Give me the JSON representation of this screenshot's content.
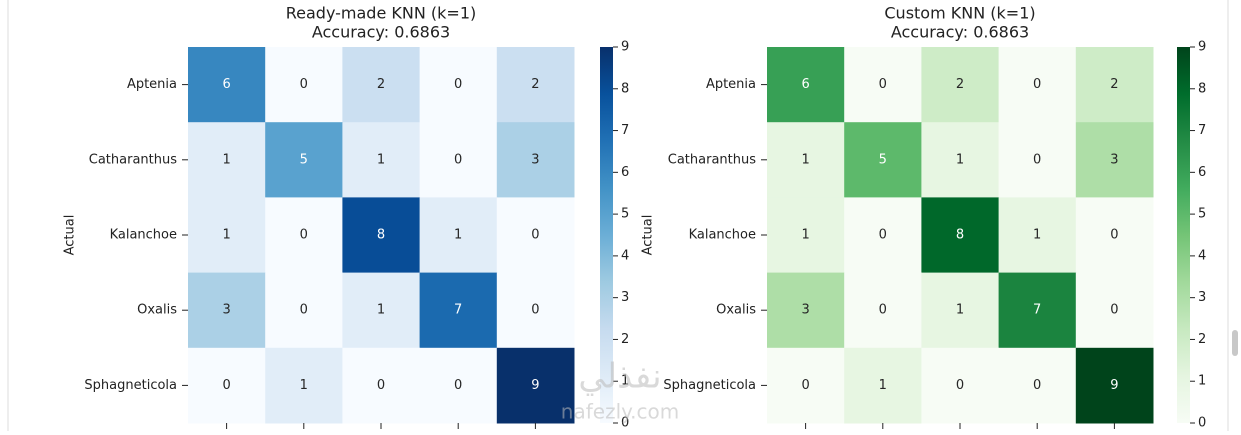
{
  "chart_data": [
    {
      "type": "heatmap",
      "title": "Ready-made KNN (k=1)",
      "subtitle": "Accuracy: 0.6863",
      "ylabel": "Actual",
      "rows": [
        "Aptenia",
        "Catharanthus",
        "Kalanchoe",
        "Oxalis",
        "Sphagneticola"
      ],
      "columns": [
        null,
        null,
        null,
        null,
        null
      ],
      "values": [
        [
          6,
          0,
          2,
          0,
          2
        ],
        [
          1,
          5,
          1,
          0,
          3
        ],
        [
          1,
          0,
          8,
          1,
          0
        ],
        [
          3,
          0,
          1,
          7,
          0
        ],
        [
          0,
          1,
          0,
          0,
          9
        ]
      ],
      "colormap": [
        "#f7fbff",
        "#deebf7",
        "#c6dbef",
        "#9ecae1",
        "#6baed6",
        "#4292c6",
        "#2171b5",
        "#08519c",
        "#08306b"
      ],
      "clim": [
        0,
        9
      ],
      "cticks": [
        0,
        1,
        2,
        3,
        4,
        5,
        6,
        7,
        8,
        9
      ]
    },
    {
      "type": "heatmap",
      "title": "Custom KNN (k=1)",
      "subtitle": "Accuracy: 0.6863",
      "ylabel": "Actual",
      "rows": [
        "Aptenia",
        "Catharanthus",
        "Kalanchoe",
        "Oxalis",
        "Sphagneticola"
      ],
      "columns": [
        null,
        null,
        null,
        null,
        null
      ],
      "values": [
        [
          6,
          0,
          2,
          0,
          2
        ],
        [
          1,
          5,
          1,
          0,
          3
        ],
        [
          1,
          0,
          8,
          1,
          0
        ],
        [
          3,
          0,
          1,
          7,
          0
        ],
        [
          0,
          1,
          0,
          0,
          9
        ]
      ],
      "colormap": [
        "#f7fcf5",
        "#e5f5e0",
        "#c7e9c0",
        "#a1d99b",
        "#74c476",
        "#41ab5d",
        "#238b45",
        "#006d2c",
        "#00441b"
      ],
      "clim": [
        0,
        9
      ],
      "cticks": [
        0,
        1,
        2,
        3,
        4,
        5,
        6,
        7,
        8,
        9
      ]
    }
  ],
  "watermark": [
    "نفذلي",
    "nafezly.com"
  ]
}
